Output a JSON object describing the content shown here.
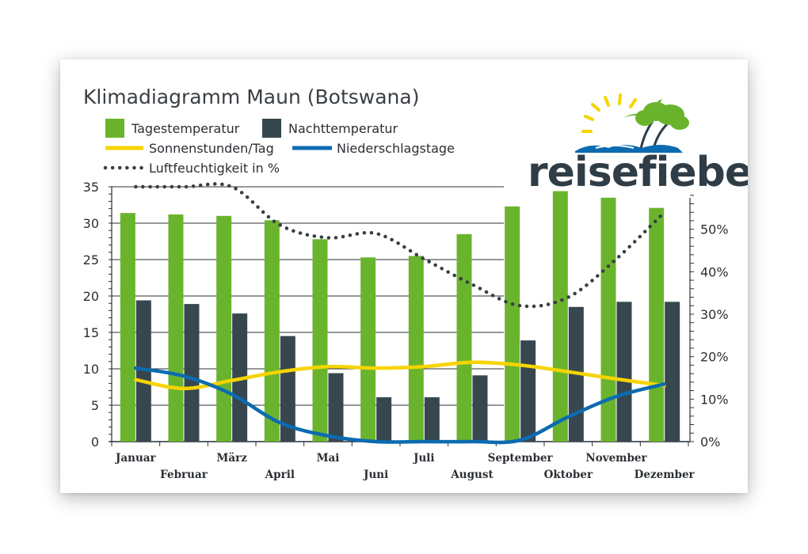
{
  "chart_data": {
    "type": "bar",
    "title": "Klimadiagramm Maun (Botswana)",
    "categories": [
      "Januar",
      "Februar",
      "März",
      "April",
      "Mai",
      "Juni",
      "Juli",
      "August",
      "September",
      "Oktober",
      "November",
      "Dezember"
    ],
    "y_left": {
      "ylim": [
        0,
        35
      ],
      "ticks": [
        0,
        5,
        10,
        15,
        20,
        25,
        30,
        35
      ]
    },
    "y_right": {
      "ylim": [
        0,
        60
      ],
      "ticks": [
        "0%",
        "10%",
        "20%",
        "30%",
        "40%",
        "50%"
      ]
    },
    "legend_placement": "top-left",
    "series": [
      {
        "name": "Tagestemperatur",
        "kind": "bar",
        "axis": "left",
        "color": "#6ab42d",
        "values": [
          31.4,
          31.2,
          31.0,
          30.4,
          27.8,
          25.3,
          25.5,
          28.5,
          32.3,
          34.4,
          33.5,
          32.1
        ]
      },
      {
        "name": "Nachttemperatur",
        "kind": "bar",
        "axis": "left",
        "color": "#37474f",
        "values": [
          19.4,
          18.9,
          17.6,
          14.5,
          9.4,
          6.1,
          6.1,
          9.1,
          13.9,
          18.5,
          19.2,
          19.2
        ]
      },
      {
        "name": "Sonnenstunden/Tag",
        "kind": "line",
        "axis": "left",
        "color": "#f6d400",
        "values": [
          8.5,
          7.3,
          8.4,
          9.6,
          10.3,
          10.1,
          10.3,
          10.9,
          10.5,
          9.6,
          8.6,
          7.7
        ]
      },
      {
        "name": "Niederschlagstage",
        "kind": "line",
        "axis": "left",
        "color": "#0c6bb0",
        "values": [
          10.1,
          9.0,
          6.5,
          2.6,
          0.8,
          0.0,
          0.0,
          0.0,
          0.2,
          3.4,
          6.2,
          7.9
        ]
      },
      {
        "name": "Luftfeuchtigkeit in %",
        "kind": "dotted-line",
        "axis": "right",
        "color": "#3a3f44",
        "values": [
          60,
          60,
          60,
          51,
          48,
          49,
          43,
          37,
          32,
          34,
          43,
          54
        ]
      }
    ]
  },
  "logo": {
    "wordmark": "reisefieber",
    "colors": {
      "sun": "#f6d400",
      "palm": "#6ab42d",
      "wave": "#0c6bb0",
      "text": "#2f3d47"
    }
  }
}
